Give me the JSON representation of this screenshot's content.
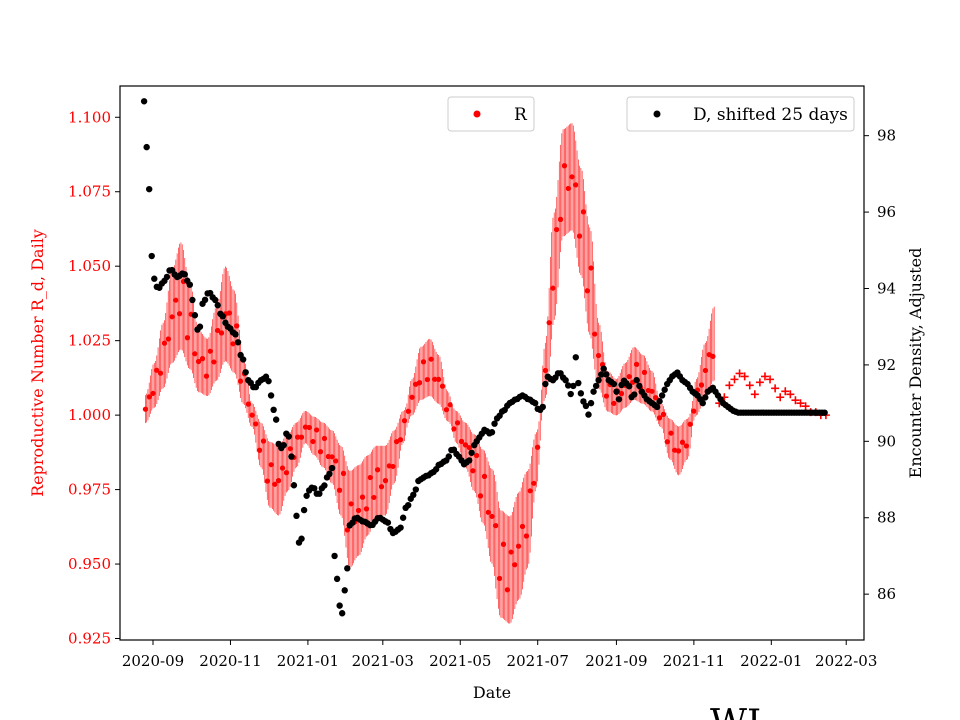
{
  "chart_data": {
    "type": "scatter",
    "xlabel": "Date",
    "x_ticks": [
      "2020-09",
      "2020-11",
      "2021-01",
      "2021-03",
      "2021-05",
      "2021-07",
      "2021-09",
      "2021-11",
      "2022-01",
      "2022-03"
    ],
    "x_range": [
      "2020-08-06",
      "2022-03-15"
    ],
    "y_left": {
      "label": "Reproductive Number R_d, Daily",
      "color": "#ff0000",
      "ticks": [
        "0.925",
        "0.950",
        "0.975",
        "1.000",
        "1.025",
        "1.050",
        "1.075",
        "1.100"
      ],
      "range": [
        0.9245,
        1.1105
      ]
    },
    "y_right": {
      "label": "Encounter Density, Adjusted",
      "color": "#000000",
      "ticks": [
        "86",
        "88",
        "90",
        "92",
        "94",
        "96",
        "98"
      ],
      "range": [
        84.8,
        99.3
      ]
    },
    "legend": [
      {
        "label": "R",
        "color": "#ff0000",
        "placement": "upper-center"
      },
      {
        "label": "D, shifted 25 days",
        "color": "#000000",
        "placement": "upper-right"
      }
    ],
    "series": [
      {
        "name": "R",
        "axis": "left",
        "color": "#ff0000",
        "points": [
          [
            "2020-08-26",
            1.002
          ],
          [
            "2020-09-02",
            1.01
          ],
          [
            "2020-09-09",
            1.02
          ],
          [
            "2020-09-16",
            1.033
          ],
          [
            "2020-09-23",
            1.04
          ],
          [
            "2020-09-30",
            1.03
          ],
          [
            "2020-10-07",
            1.018
          ],
          [
            "2020-10-14",
            1.016
          ],
          [
            "2020-10-21",
            1.024
          ],
          [
            "2020-10-28",
            1.034
          ],
          [
            "2020-11-04",
            1.028
          ],
          [
            "2020-11-11",
            1.012
          ],
          [
            "2020-11-18",
            1.0
          ],
          [
            "2020-11-25",
            0.99
          ],
          [
            "2020-12-02",
            0.98
          ],
          [
            "2020-12-09",
            0.978
          ],
          [
            "2020-12-16",
            0.984
          ],
          [
            "2020-12-23",
            0.99
          ],
          [
            "2020-12-30",
            0.996
          ],
          [
            "2021-01-06",
            0.993
          ],
          [
            "2021-01-13",
            0.99
          ],
          [
            "2021-01-20",
            0.986
          ],
          [
            "2021-01-27",
            0.978
          ],
          [
            "2021-02-03",
            0.965
          ],
          [
            "2021-02-10",
            0.968
          ],
          [
            "2021-02-17",
            0.973
          ],
          [
            "2021-02-24",
            0.978
          ],
          [
            "2021-03-03",
            0.978
          ],
          [
            "2021-03-10",
            0.986
          ],
          [
            "2021-03-17",
            0.996
          ],
          [
            "2021-03-24",
            1.006
          ],
          [
            "2021-03-31",
            1.014
          ],
          [
            "2021-04-07",
            1.016
          ],
          [
            "2021-04-14",
            1.012
          ],
          [
            "2021-04-21",
            1.003
          ],
          [
            "2021-04-28",
            0.996
          ],
          [
            "2021-05-05",
            0.99
          ],
          [
            "2021-05-12",
            0.984
          ],
          [
            "2021-05-19",
            0.976
          ],
          [
            "2021-05-26",
            0.966
          ],
          [
            "2021-06-02",
            0.95
          ],
          [
            "2021-06-09",
            0.948
          ],
          [
            "2021-06-16",
            0.956
          ],
          [
            "2021-06-23",
            0.965
          ],
          [
            "2021-06-30",
            0.985
          ],
          [
            "2021-07-07",
            1.015
          ],
          [
            "2021-07-14",
            1.05
          ],
          [
            "2021-07-21",
            1.078
          ],
          [
            "2021-07-28",
            1.08
          ],
          [
            "2021-08-04",
            1.065
          ],
          [
            "2021-08-11",
            1.045
          ],
          [
            "2021-08-18",
            1.02
          ],
          [
            "2021-08-25",
            1.008
          ],
          [
            "2021-09-01",
            1.006
          ],
          [
            "2021-09-08",
            1.01
          ],
          [
            "2021-09-15",
            1.014
          ],
          [
            "2021-09-22",
            1.012
          ],
          [
            "2021-09-29",
            1.008
          ],
          [
            "2021-10-06",
            1.0
          ],
          [
            "2021-10-13",
            0.992
          ],
          [
            "2021-10-20",
            0.988
          ],
          [
            "2021-10-27",
            0.992
          ],
          [
            "2021-11-03",
            1.006
          ],
          [
            "2021-11-10",
            1.015
          ],
          [
            "2021-11-17",
            1.024
          ]
        ]
      },
      {
        "name": "R (plus markers)",
        "axis": "left",
        "color": "#ff0000",
        "points": [
          [
            "2021-11-21",
            1.004
          ],
          [
            "2021-11-25",
            1.006
          ],
          [
            "2021-11-29",
            1.01
          ],
          [
            "2021-12-03",
            1.012
          ],
          [
            "2021-12-07",
            1.014
          ],
          [
            "2021-12-11",
            1.013
          ],
          [
            "2021-12-15",
            1.01
          ],
          [
            "2021-12-19",
            1.007
          ],
          [
            "2021-12-23",
            1.011
          ],
          [
            "2021-12-27",
            1.013
          ],
          [
            "2021-12-31",
            1.012
          ],
          [
            "2022-01-04",
            1.009
          ],
          [
            "2022-01-08",
            1.006
          ],
          [
            "2022-01-12",
            1.008
          ],
          [
            "2022-01-16",
            1.007
          ],
          [
            "2022-01-20",
            1.005
          ],
          [
            "2022-01-24",
            1.004
          ],
          [
            "2022-01-28",
            1.003
          ],
          [
            "2022-02-01",
            1.001
          ],
          [
            "2022-02-05",
            1.001
          ],
          [
            "2022-02-09",
            1.0
          ],
          [
            "2022-02-13",
            1.0
          ]
        ]
      },
      {
        "name": "D, shifted 25 days",
        "axis": "right",
        "color": "#000000",
        "points": [
          [
            "2020-08-25",
            98.9
          ],
          [
            "2020-08-27",
            97.7
          ],
          [
            "2020-08-29",
            96.6
          ],
          [
            "2020-08-30",
            95.4
          ],
          [
            "2020-09-01",
            94.3
          ],
          [
            "2020-09-05",
            94.0
          ],
          [
            "2020-09-10",
            94.2
          ],
          [
            "2020-09-15",
            94.5
          ],
          [
            "2020-09-20",
            94.3
          ],
          [
            "2020-09-25",
            94.4
          ],
          [
            "2020-09-30",
            94.1
          ],
          [
            "2020-10-04",
            93.3
          ],
          [
            "2020-10-07",
            92.8
          ],
          [
            "2020-10-10",
            93.6
          ],
          [
            "2020-10-15",
            93.9
          ],
          [
            "2020-10-20",
            93.7
          ],
          [
            "2020-10-25",
            93.3
          ],
          [
            "2020-10-30",
            93.0
          ],
          [
            "2020-11-05",
            92.8
          ],
          [
            "2020-11-10",
            92.2
          ],
          [
            "2020-11-15",
            91.6
          ],
          [
            "2020-11-20",
            91.4
          ],
          [
            "2020-11-25",
            91.6
          ],
          [
            "2020-11-30",
            91.7
          ],
          [
            "2020-12-03",
            91.2
          ],
          [
            "2020-12-06",
            90.7
          ],
          [
            "2020-12-10",
            89.8
          ],
          [
            "2020-12-13",
            89.9
          ],
          [
            "2020-12-16",
            90.3
          ],
          [
            "2020-12-19",
            89.6
          ],
          [
            "2020-12-22",
            88.6
          ],
          [
            "2020-12-24",
            87.5
          ],
          [
            "2020-12-26",
            87.2
          ],
          [
            "2020-12-29",
            88.2
          ],
          [
            "2021-01-01",
            88.7
          ],
          [
            "2021-01-05",
            88.8
          ],
          [
            "2021-01-09",
            88.6
          ],
          [
            "2021-01-13",
            88.8
          ],
          [
            "2021-01-17",
            89.1
          ],
          [
            "2021-01-20",
            89.3
          ],
          [
            "2021-01-22",
            87.0
          ],
          [
            "2021-01-24",
            86.4
          ],
          [
            "2021-01-26",
            85.7
          ],
          [
            "2021-01-28",
            85.5
          ],
          [
            "2021-01-31",
            86.3
          ],
          [
            "2021-02-03",
            87.8
          ],
          [
            "2021-02-08",
            88.0
          ],
          [
            "2021-02-14",
            87.9
          ],
          [
            "2021-02-20",
            87.8
          ],
          [
            "2021-02-26",
            88.0
          ],
          [
            "2021-03-04",
            87.9
          ],
          [
            "2021-03-09",
            87.6
          ],
          [
            "2021-03-14",
            87.7
          ],
          [
            "2021-03-20",
            88.3
          ],
          [
            "2021-03-25",
            88.6
          ],
          [
            "2021-03-30",
            89.0
          ],
          [
            "2021-04-05",
            89.1
          ],
          [
            "2021-04-10",
            89.2
          ],
          [
            "2021-04-15",
            89.4
          ],
          [
            "2021-04-20",
            89.5
          ],
          [
            "2021-04-25",
            89.8
          ],
          [
            "2021-04-30",
            89.6
          ],
          [
            "2021-05-04",
            89.4
          ],
          [
            "2021-05-08",
            89.5
          ],
          [
            "2021-05-12",
            89.9
          ],
          [
            "2021-05-16",
            90.1
          ],
          [
            "2021-05-20",
            90.3
          ],
          [
            "2021-05-25",
            90.2
          ],
          [
            "2021-05-30",
            90.6
          ],
          [
            "2021-06-04",
            90.8
          ],
          [
            "2021-06-09",
            91.0
          ],
          [
            "2021-06-14",
            91.1
          ],
          [
            "2021-06-19",
            91.2
          ],
          [
            "2021-06-24",
            91.1
          ],
          [
            "2021-06-29",
            91.0
          ],
          [
            "2021-07-02",
            90.8
          ],
          [
            "2021-07-05",
            90.9
          ],
          [
            "2021-07-08",
            91.7
          ],
          [
            "2021-07-13",
            91.6
          ],
          [
            "2021-07-18",
            91.8
          ],
          [
            "2021-07-23",
            91.6
          ],
          [
            "2021-07-28",
            91.2
          ],
          [
            "2021-07-31",
            92.2
          ],
          [
            "2021-08-03",
            91.3
          ],
          [
            "2021-08-07",
            91.0
          ],
          [
            "2021-08-10",
            90.7
          ],
          [
            "2021-08-14",
            91.3
          ],
          [
            "2021-08-18",
            91.6
          ],
          [
            "2021-08-22",
            91.9
          ],
          [
            "2021-08-26",
            91.6
          ],
          [
            "2021-08-30",
            91.5
          ],
          [
            "2021-09-03",
            91.1
          ],
          [
            "2021-09-06",
            91.6
          ],
          [
            "2021-09-10",
            91.5
          ],
          [
            "2021-09-14",
            91.1
          ],
          [
            "2021-09-17",
            91.6
          ],
          [
            "2021-09-21",
            91.3
          ],
          [
            "2021-09-25",
            91.1
          ],
          [
            "2021-09-29",
            91.0
          ],
          [
            "2021-10-03",
            90.9
          ],
          [
            "2021-10-07",
            91.2
          ],
          [
            "2021-10-11",
            91.5
          ],
          [
            "2021-10-15",
            91.7
          ],
          [
            "2021-10-19",
            91.8
          ],
          [
            "2021-10-23",
            91.6
          ],
          [
            "2021-10-27",
            91.5
          ],
          [
            "2021-10-31",
            91.3
          ],
          [
            "2021-11-04",
            91.2
          ],
          [
            "2021-11-08",
            91.0
          ],
          [
            "2021-11-12",
            91.3
          ],
          [
            "2021-11-16",
            91.4
          ],
          [
            "2021-11-20",
            91.2
          ],
          [
            "2021-11-24",
            91.0
          ],
          [
            "2021-11-28",
            90.9
          ],
          [
            "2021-12-02",
            90.8
          ],
          [
            "2021-12-06",
            90.75
          ],
          [
            "2021-12-10",
            90.75
          ],
          [
            "2021-12-14",
            90.75
          ],
          [
            "2021-12-18",
            90.75
          ],
          [
            "2021-12-22",
            90.75
          ],
          [
            "2021-12-26",
            90.75
          ],
          [
            "2021-12-30",
            90.75
          ],
          [
            "2022-01-03",
            90.75
          ],
          [
            "2022-01-07",
            90.75
          ],
          [
            "2022-01-11",
            90.75
          ],
          [
            "2022-01-15",
            90.75
          ],
          [
            "2022-01-19",
            90.75
          ],
          [
            "2022-01-23",
            90.75
          ],
          [
            "2022-01-27",
            90.75
          ],
          [
            "2022-01-31",
            90.75
          ],
          [
            "2022-02-04",
            90.75
          ],
          [
            "2022-02-08",
            90.75
          ],
          [
            "2022-02-12",
            90.75
          ]
        ]
      }
    ]
  },
  "watermark": "WL"
}
